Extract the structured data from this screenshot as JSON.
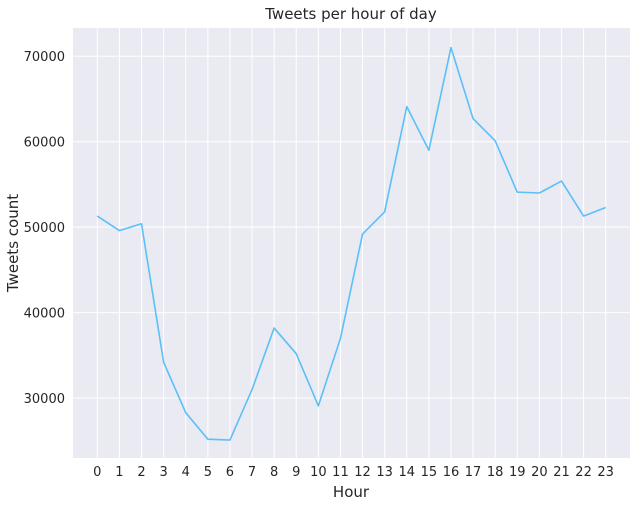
{
  "chart_data": {
    "type": "line",
    "title": "Tweets per hour of day",
    "xlabel": "Hour",
    "ylabel": "Tweets count",
    "x": [
      0,
      1,
      2,
      3,
      4,
      5,
      6,
      7,
      8,
      9,
      10,
      11,
      12,
      13,
      14,
      15,
      16,
      17,
      18,
      19,
      20,
      21,
      22,
      23
    ],
    "series": [
      {
        "values": [
          51300,
          49600,
          50400,
          34200,
          28300,
          25200,
          25100,
          31000,
          38200,
          35200,
          29100,
          37000,
          49200,
          51800,
          64100,
          59000,
          71000,
          62700,
          60100,
          54100,
          54000,
          55400,
          51300,
          52300
        ],
        "color": "#5bc0f8"
      }
    ],
    "xlim": [
      -1.1,
      24.1
    ],
    "ylim": [
      23000,
      73300
    ],
    "y_ticks": [
      30000,
      40000,
      50000,
      60000,
      70000
    ],
    "grid": true,
    "plot_background": "#eaeaf2",
    "grid_color": "#ffffff"
  }
}
